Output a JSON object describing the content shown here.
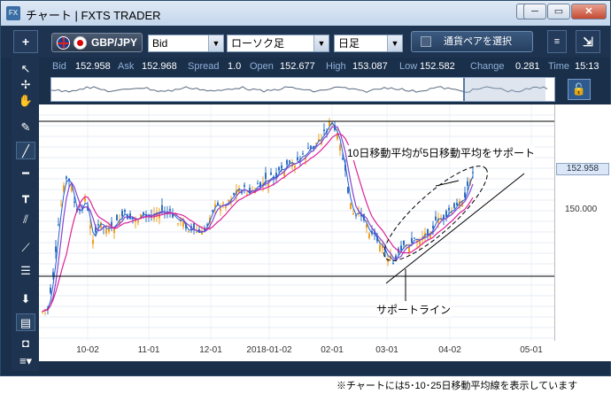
{
  "window": {
    "title": "チャート | FXTS TRADER",
    "app_icon": "fx-app-icon",
    "controls": [
      "▾",
      "─",
      "▭",
      "✕"
    ]
  },
  "toolbar": {
    "add_label": "+",
    "pair": "GBP/JPY",
    "price_type": "Bid",
    "chart_type": "ローソク足",
    "timeframe": "日足",
    "pair_select": "通貨ペアを選択",
    "side_icon": "≡",
    "arrow_label": "⇲"
  },
  "quote": {
    "bid_label": "Bid",
    "bid": "152.958",
    "ask_label": "Ask",
    "ask": "152.968",
    "spread_label": "Spread",
    "spread": "1.0",
    "open_label": "Open",
    "open": "152.677",
    "high_label": "High",
    "high": "153.087",
    "low_label": "Low",
    "low": "152.582",
    "change_label": "Change",
    "change": "0.281",
    "time_label": "Time",
    "time": "15:13"
  },
  "left_tools": [
    "arrow-icon",
    "crosshair-icon",
    "hand-icon",
    "pin-icon",
    "trendline-icon",
    "hline-icon",
    "vline-icon",
    "channel-icon",
    "fibo-fan-icon",
    "fibo-icon",
    "download-icon",
    "list-icon",
    "camera-icon",
    "menu-icon"
  ],
  "chart_data": {
    "type": "line",
    "title": "",
    "x_ticks": [
      "10-02",
      "11-01",
      "12-01",
      "2018-01-02",
      "02-01",
      "03-01",
      "04-02",
      "05-01"
    ],
    "y_ticks": [
      "150.000"
    ],
    "current_price": "152.958",
    "series": [
      {
        "name": "",
        "color": "#f0a020",
        "kind": "candles"
      },
      {
        "name": "",
        "color": "#8844cc",
        "kind": "ma"
      },
      {
        "name": "",
        "color": "#dd2299",
        "kind": "ma"
      }
    ],
    "colors": {
      "up": "#f0a020",
      "down": "#3070c0",
      "ma_mid": "#8844cc",
      "ma_long": "#dd2299"
    },
    "annotations": {
      "top": "10日移動平均が5日移動平均をサポート",
      "bottom": "サポートライン"
    }
  },
  "footer": "※チャートには5･10･25日移動平均線を表示しています"
}
